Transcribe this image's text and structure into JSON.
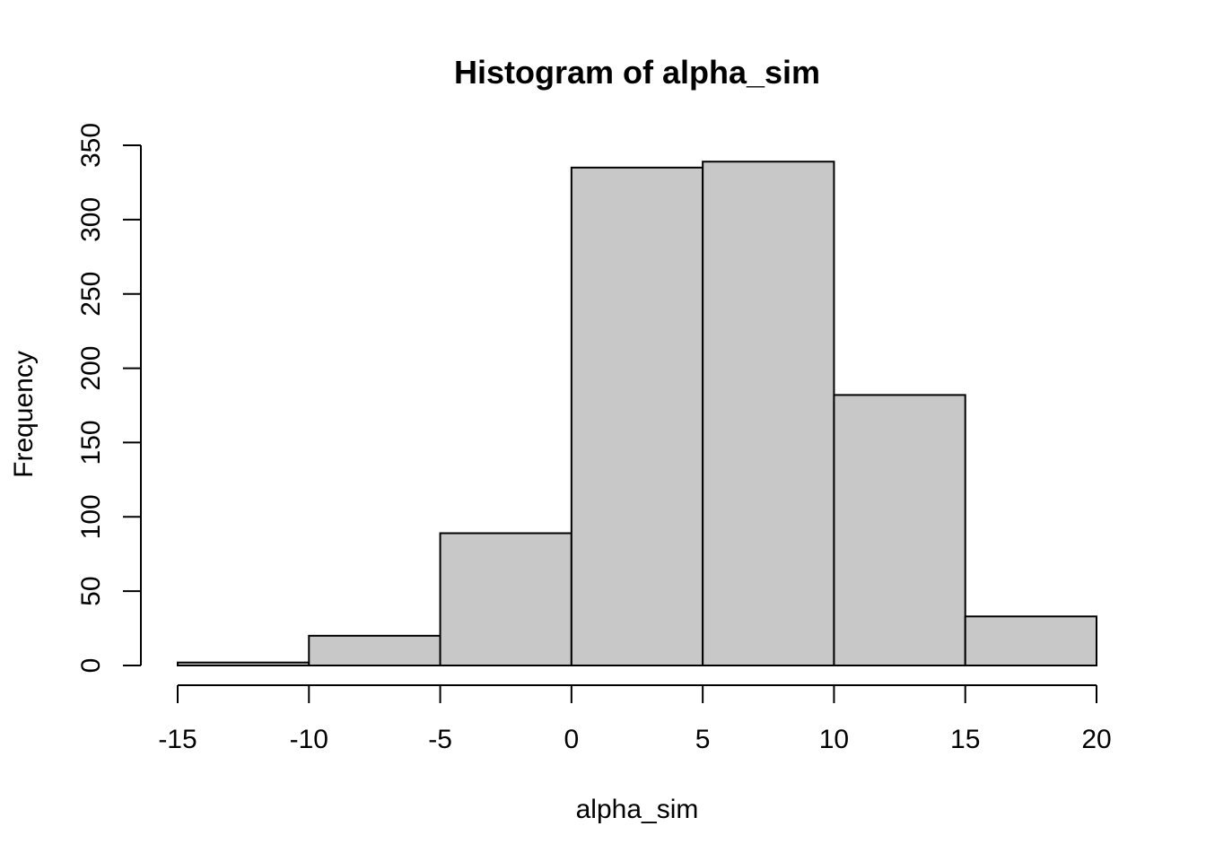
{
  "chart_data": {
    "type": "bar",
    "title": "Histogram of alpha_sim",
    "xlabel": "alpha_sim",
    "ylabel": "Frequency",
    "bins": [
      {
        "from": -15,
        "to": -10,
        "count": 2
      },
      {
        "from": -10,
        "to": -5,
        "count": 20
      },
      {
        "from": -5,
        "to": 0,
        "count": 89
      },
      {
        "from": 0,
        "to": 5,
        "count": 335
      },
      {
        "from": 5,
        "to": 10,
        "count": 339
      },
      {
        "from": 10,
        "to": 15,
        "count": 182
      },
      {
        "from": 15,
        "to": 20,
        "count": 33
      }
    ],
    "xlim": [
      -15,
      20
    ],
    "ylim": [
      0,
      350
    ],
    "x_ticks": [
      -15,
      -10,
      -5,
      0,
      5,
      10,
      15,
      20
    ],
    "y_ticks": [
      0,
      50,
      100,
      150,
      200,
      250,
      300,
      350
    ],
    "bar_color": "#c8c8c8",
    "grid": false,
    "legend": "none"
  }
}
